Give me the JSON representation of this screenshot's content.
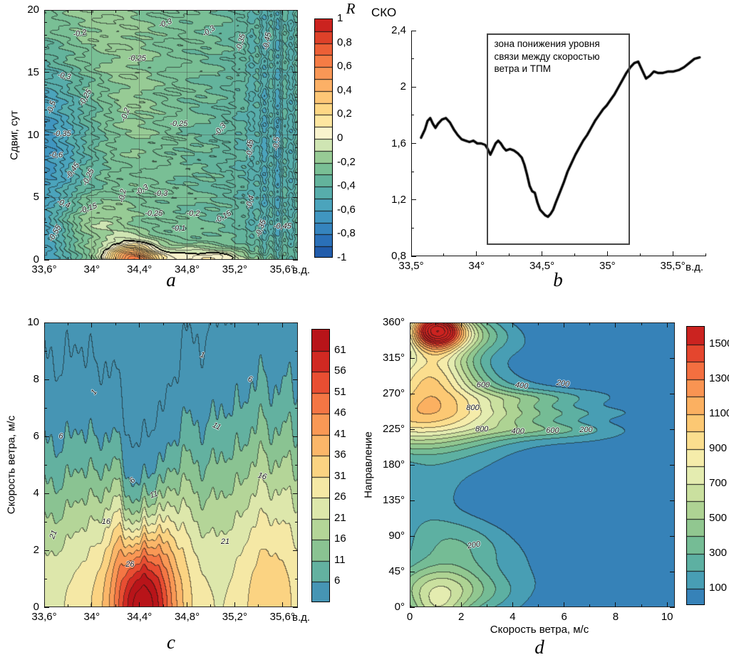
{
  "chart_data": [
    {
      "id": "a",
      "letter": "a",
      "type": "heatmap",
      "ylabel": "Сдвиг, сут",
      "xunit": "в.д.",
      "xlim": [
        33.6,
        35.73
      ],
      "ylim": [
        0,
        20
      ],
      "xticks": {
        "major": [
          [
            33.6,
            "33,6°"
          ],
          [
            34,
            "34°"
          ],
          [
            34.4,
            "34,4°"
          ],
          [
            34.8,
            "34,8°"
          ],
          [
            35.2,
            "35,2°"
          ],
          [
            35.6,
            "35,6°"
          ]
        ],
        "minor_step": 0.2
      },
      "yticks": {
        "major": [
          [
            0,
            "0"
          ],
          [
            5,
            "5"
          ],
          [
            10,
            "10"
          ],
          [
            15,
            "15"
          ],
          [
            20,
            "20"
          ]
        ],
        "minor_step": 1
      },
      "grid": {
        "x": [
          34,
          34.4,
          34.8,
          35.2,
          35.6
        ],
        "y": [
          5,
          10,
          15
        ]
      },
      "fill_step": 0.1,
      "line_step": 0.05,
      "colorbar": {
        "title": "R",
        "min": -1,
        "max": 1,
        "ticks": [
          [
            1,
            "1"
          ],
          [
            0.8,
            "0,8"
          ],
          [
            0.6,
            "0,6"
          ],
          [
            0.4,
            "0,4"
          ],
          [
            0.2,
            "0,2"
          ],
          [
            0,
            "0"
          ],
          [
            -0.2,
            "-0,2"
          ],
          [
            -0.4,
            "-0,4"
          ],
          [
            -0.6,
            "-0,6"
          ],
          [
            -0.8,
            "-0,8"
          ],
          [
            -1,
            "-1"
          ]
        ]
      },
      "colormap": [
        [
          -1,
          "#1d52a5"
        ],
        [
          -0.85,
          "#2a70b8"
        ],
        [
          -0.7,
          "#3b8fc2"
        ],
        [
          -0.55,
          "#4ba4bc"
        ],
        [
          -0.45,
          "#57adab"
        ],
        [
          -0.35,
          "#63b39c"
        ],
        [
          -0.25,
          "#79bf95"
        ],
        [
          -0.15,
          "#97cb95"
        ],
        [
          -0.08,
          "#bcdca3"
        ],
        [
          -0.02,
          "#e2efc4"
        ],
        [
          0.02,
          "#f7f7dc"
        ],
        [
          0.1,
          "#fdeeb5"
        ],
        [
          0.2,
          "#fee08c"
        ],
        [
          0.35,
          "#fdc777"
        ],
        [
          0.5,
          "#fca55e"
        ],
        [
          0.65,
          "#f57d46"
        ],
        [
          0.8,
          "#e8512f"
        ],
        [
          0.92,
          "#d22b22"
        ],
        [
          1,
          "#c0161c"
        ]
      ],
      "contour_labels": [
        {
          "t": "-0,2",
          "x": 33.9,
          "y": 18.1,
          "r": -10
        },
        {
          "t": "-0,3",
          "x": 34.98,
          "y": 18.3,
          "r": -35
        },
        {
          "t": "-0,3",
          "x": 34.62,
          "y": 18.9,
          "r": -20
        },
        {
          "t": "-0,35",
          "x": 35.25,
          "y": 17.4,
          "r": -75
        },
        {
          "t": "-0,45",
          "x": 35.47,
          "y": 17.5,
          "r": -80
        },
        {
          "t": "-0,25",
          "x": 34.38,
          "y": 16.1,
          "r": 0
        },
        {
          "t": "-0,3",
          "x": 33.77,
          "y": 14.7,
          "r": 10
        },
        {
          "t": "-0,5",
          "x": 33.66,
          "y": 12.2,
          "r": -70
        },
        {
          "t": "-0,25",
          "x": 33.95,
          "y": 13.0,
          "r": -60
        },
        {
          "t": "-0,35",
          "x": 33.75,
          "y": 10.1,
          "r": 0
        },
        {
          "t": "-0,2",
          "x": 34.28,
          "y": 11.6,
          "r": -70
        },
        {
          "t": "-0,25",
          "x": 34.73,
          "y": 10.9,
          "r": 0
        },
        {
          "t": "-0,3",
          "x": 35.08,
          "y": 10.4,
          "r": -50
        },
        {
          "t": "-0,45",
          "x": 35.33,
          "y": 8.9,
          "r": -85
        },
        {
          "t": "-0,5",
          "x": 35.55,
          "y": 9.3,
          "r": -85
        },
        {
          "t": "-0,6",
          "x": 33.7,
          "y": 8.4,
          "r": 0
        },
        {
          "t": "-0,45",
          "x": 33.84,
          "y": 7.1,
          "r": -55
        },
        {
          "t": "-0,25",
          "x": 33.97,
          "y": 6.6,
          "r": -65
        },
        {
          "t": "-0,2",
          "x": 34.26,
          "y": 5.1,
          "r": -80
        },
        {
          "t": "-0,3",
          "x": 34.42,
          "y": 5.6,
          "r": -30
        },
        {
          "t": "-0,3",
          "x": 34.58,
          "y": 5.3,
          "r": 0
        },
        {
          "t": "-0,4",
          "x": 33.76,
          "y": 4.5,
          "r": 20
        },
        {
          "t": "-0,15",
          "x": 33.97,
          "y": 4.1,
          "r": -20
        },
        {
          "t": "-0,25",
          "x": 34.52,
          "y": 3.7,
          "r": 0
        },
        {
          "t": "-0,2",
          "x": 34.85,
          "y": 3.7,
          "r": 0
        },
        {
          "t": "-0,15",
          "x": 35.1,
          "y": 3.4,
          "r": -30
        },
        {
          "t": "-0,1",
          "x": 34.73,
          "y": 2.5,
          "r": 0
        },
        {
          "t": "-0,55",
          "x": 33.69,
          "y": 2.1,
          "r": -60
        },
        {
          "t": "-0,35",
          "x": 35.42,
          "y": 2.5,
          "r": -70
        },
        {
          "t": "-0,4",
          "x": 35.33,
          "y": 4.6,
          "r": -75
        },
        {
          "t": "-0,45",
          "x": 35.6,
          "y": 2.7,
          "r": 0
        }
      ]
    },
    {
      "id": "b",
      "letter": "b",
      "type": "line",
      "title": "СКО",
      "xunit": "в.д.",
      "xlim": [
        33.5,
        35.75
      ],
      "ylim": [
        0.8,
        2.4
      ],
      "xticks": {
        "major": [
          [
            33.5,
            "33,5°"
          ],
          [
            34,
            "34°"
          ],
          [
            34.5,
            "34,5°"
          ],
          [
            35,
            "35°"
          ],
          [
            35.5,
            "35,5°"
          ]
        ],
        "minor_step": 0.25
      },
      "yticks": {
        "major": [
          [
            0.8,
            "0,8"
          ],
          [
            1.2,
            "1,2"
          ],
          [
            1.6,
            "1,6"
          ],
          [
            2,
            "2"
          ],
          [
            2.4,
            "2,4"
          ]
        ],
        "minor_step": 0.2
      },
      "series": [
        {
          "name": "СКО",
          "x": [
            33.57,
            33.6,
            33.62,
            33.64,
            33.66,
            33.68,
            33.7,
            33.73,
            33.76,
            33.79,
            33.82,
            33.85,
            33.88,
            33.91,
            33.94,
            33.97,
            34.0,
            34.03,
            34.06,
            34.08,
            34.1,
            34.12,
            34.14,
            34.16,
            34.18,
            34.2,
            34.22,
            34.25,
            34.28,
            34.31,
            34.34,
            34.36,
            34.38,
            34.4,
            34.42,
            34.44,
            34.46,
            34.48,
            34.5,
            34.52,
            34.54,
            34.56,
            34.58,
            34.6,
            34.63,
            34.66,
            34.69,
            34.72,
            34.75,
            34.78,
            34.81,
            34.84,
            34.87,
            34.9,
            34.93,
            34.96,
            34.99,
            35.02,
            35.05,
            35.08,
            35.11,
            35.14,
            35.17,
            35.2,
            35.23,
            35.26,
            35.29,
            35.32,
            35.35,
            35.38,
            35.42,
            35.46,
            35.5,
            35.54,
            35.58,
            35.62,
            35.66,
            35.7
          ],
          "y": [
            1.64,
            1.7,
            1.76,
            1.78,
            1.74,
            1.71,
            1.74,
            1.77,
            1.78,
            1.75,
            1.7,
            1.66,
            1.63,
            1.62,
            1.61,
            1.62,
            1.6,
            1.6,
            1.59,
            1.56,
            1.52,
            1.56,
            1.6,
            1.62,
            1.6,
            1.57,
            1.55,
            1.56,
            1.55,
            1.53,
            1.5,
            1.45,
            1.38,
            1.3,
            1.26,
            1.25,
            1.18,
            1.13,
            1.11,
            1.09,
            1.08,
            1.1,
            1.13,
            1.18,
            1.25,
            1.32,
            1.4,
            1.46,
            1.52,
            1.57,
            1.62,
            1.66,
            1.71,
            1.76,
            1.8,
            1.84,
            1.87,
            1.91,
            1.95,
            2.0,
            2.05,
            2.1,
            2.14,
            2.17,
            2.18,
            2.12,
            2.06,
            2.08,
            2.11,
            2.1,
            2.1,
            2.11,
            2.11,
            2.12,
            2.14,
            2.17,
            2.2,
            2.21
          ]
        }
      ],
      "annotation": {
        "text": "зона понижения уровня\nсвязи между скоростью\nветра и ТПМ",
        "box": {
          "x1": 34.08,
          "x2": 35.17,
          "y1": 0.88,
          "y2": 2.38
        }
      }
    },
    {
      "id": "c",
      "letter": "c",
      "type": "heatmap",
      "ylabel": "Скорость ветра, м/с",
      "xunit": "в.д.",
      "xlim": [
        33.6,
        35.73
      ],
      "ylim": [
        0,
        10
      ],
      "xticks": {
        "major": [
          [
            33.6,
            "33,6°"
          ],
          [
            34,
            "34°"
          ],
          [
            34.4,
            "34,4°"
          ],
          [
            34.8,
            "34,8°"
          ],
          [
            35.2,
            "35,2°"
          ],
          [
            35.6,
            "35,6°"
          ]
        ],
        "minor_step": 0.2
      },
      "yticks": {
        "major": [
          [
            0,
            "0"
          ],
          [
            2,
            "2"
          ],
          [
            4,
            "4"
          ],
          [
            6,
            "6"
          ],
          [
            8,
            "8"
          ],
          [
            10,
            "10"
          ]
        ],
        "minor_step": 1
      },
      "fill_step": 5,
      "line_step": 5,
      "colorbar": {
        "title": "",
        "min": 1,
        "max": 66,
        "ticks": [
          [
            6,
            "6"
          ],
          [
            11,
            "11"
          ],
          [
            16,
            "16"
          ],
          [
            21,
            "21"
          ],
          [
            26,
            "26"
          ],
          [
            31,
            "31"
          ],
          [
            36,
            "36"
          ],
          [
            41,
            "41"
          ],
          [
            46,
            "46"
          ],
          [
            51,
            "51"
          ],
          [
            56,
            "56"
          ],
          [
            61,
            "61"
          ]
        ]
      },
      "colormap": [
        [
          1,
          "#3a85bf"
        ],
        [
          6.5,
          "#55aaa8"
        ],
        [
          11.5,
          "#7abd94"
        ],
        [
          16.5,
          "#a2cd90"
        ],
        [
          21.5,
          "#cfe3a4"
        ],
        [
          26.5,
          "#f2efb6"
        ],
        [
          31.5,
          "#fbdf8d"
        ],
        [
          36.5,
          "#fcc272"
        ],
        [
          41.5,
          "#fba55c"
        ],
        [
          46.5,
          "#f8864b"
        ],
        [
          51.5,
          "#f0603a"
        ],
        [
          56.5,
          "#dc3427"
        ],
        [
          62,
          "#bd161b"
        ],
        [
          66,
          "#b01218"
        ]
      ],
      "contour_labels": [
        {
          "t": "1",
          "x": 34.02,
          "y": 7.55,
          "r": -55
        },
        {
          "t": "1",
          "x": 34.93,
          "y": 8.85,
          "r": 15
        },
        {
          "t": "6",
          "x": 33.74,
          "y": 6.0,
          "r": 0
        },
        {
          "t": "6",
          "x": 34.34,
          "y": 4.45,
          "r": -45
        },
        {
          "t": "6",
          "x": 35.33,
          "y": 8.0,
          "r": 15
        },
        {
          "t": "11",
          "x": 34.52,
          "y": 3.95,
          "r": -20
        },
        {
          "t": "11",
          "x": 35.05,
          "y": 6.35,
          "r": 25
        },
        {
          "t": "16",
          "x": 34.12,
          "y": 3.0,
          "r": 0
        },
        {
          "t": "16",
          "x": 35.43,
          "y": 4.6,
          "r": 15
        },
        {
          "t": "21",
          "x": 33.68,
          "y": 2.55,
          "r": -70
        },
        {
          "t": "21",
          "x": 35.12,
          "y": 2.3,
          "r": 0
        },
        {
          "t": "26",
          "x": 34.32,
          "y": 1.5,
          "r": 0
        }
      ]
    },
    {
      "id": "d",
      "letter": "d",
      "type": "heatmap",
      "ylabel": "Направление",
      "xlabel": "Скорость ветра, м/с",
      "xlim": [
        0,
        10.3
      ],
      "ylim": [
        0,
        360
      ],
      "xticks": {
        "major": [
          [
            0,
            "0"
          ],
          [
            2,
            "2"
          ],
          [
            4,
            "4"
          ],
          [
            6,
            "6"
          ],
          [
            8,
            "8"
          ],
          [
            10,
            "10"
          ]
        ],
        "minor_step": 1
      },
      "yticks": {
        "major": [
          [
            0,
            "0°"
          ],
          [
            45,
            "45°"
          ],
          [
            90,
            "90°"
          ],
          [
            135,
            "135°"
          ],
          [
            180,
            "180°"
          ],
          [
            225,
            "225°"
          ],
          [
            270,
            "270°"
          ],
          [
            315,
            "315°"
          ],
          [
            360,
            "360°"
          ]
        ],
        "minor_step": 0
      },
      "fill_step": 100,
      "line_step": 100,
      "colorbar": {
        "title": "",
        "min": 0,
        "max": 1600,
        "ticks": [
          [
            100,
            "100"
          ],
          [
            300,
            "300"
          ],
          [
            500,
            "500"
          ],
          [
            700,
            "700"
          ],
          [
            900,
            "900"
          ],
          [
            1100,
            "1100"
          ],
          [
            1300,
            "1300"
          ],
          [
            1500,
            "1500"
          ]
        ]
      },
      "colormap": [
        [
          0,
          "#2e72b4"
        ],
        [
          100,
          "#3f93bd"
        ],
        [
          200,
          "#52aaab"
        ],
        [
          300,
          "#68b69a"
        ],
        [
          400,
          "#82c291"
        ],
        [
          500,
          "#a0cd90"
        ],
        [
          600,
          "#bcd997"
        ],
        [
          700,
          "#d8e8a8"
        ],
        [
          800,
          "#f0f0b8"
        ],
        [
          900,
          "#fbe89d"
        ],
        [
          1000,
          "#fcd47f"
        ],
        [
          1100,
          "#fcbc68"
        ],
        [
          1200,
          "#fba55a"
        ],
        [
          1300,
          "#f8834a"
        ],
        [
          1400,
          "#ef5c37"
        ],
        [
          1500,
          "#d93125"
        ],
        [
          1600,
          "#bd151b"
        ]
      ],
      "contour_labels": [
        {
          "t": "600",
          "x": 2.85,
          "y": 281,
          "r": 0
        },
        {
          "t": "400",
          "x": 4.35,
          "y": 280,
          "r": 8
        },
        {
          "t": "200",
          "x": 5.95,
          "y": 283,
          "r": 8
        },
        {
          "t": "800",
          "x": 2.45,
          "y": 252,
          "r": 0
        },
        {
          "t": "800",
          "x": 2.8,
          "y": 225,
          "r": 0
        },
        {
          "t": "400",
          "x": 4.2,
          "y": 222,
          "r": 0
        },
        {
          "t": "600",
          "x": 5.55,
          "y": 223,
          "r": 0
        },
        {
          "t": "200",
          "x": 6.85,
          "y": 224,
          "r": 0
        },
        {
          "t": "200",
          "x": 2.5,
          "y": 78,
          "r": -10
        }
      ]
    }
  ]
}
